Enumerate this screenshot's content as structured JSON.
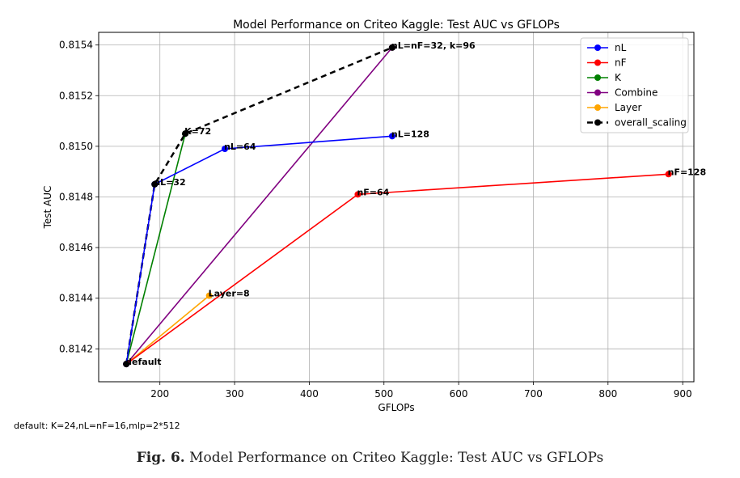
{
  "chart_data": {
    "type": "line",
    "title": "Model Performance on Criteo Kaggle: Test AUC vs GFLOPs",
    "xlabel": "GFLOPs",
    "ylabel": "Test AUC",
    "xlim": [
      118,
      915
    ],
    "ylim": [
      0.81407,
      0.81545
    ],
    "xticks": [
      200,
      300,
      400,
      500,
      600,
      700,
      800,
      900
    ],
    "yticks": [
      0.8142,
      0.8144,
      0.8146,
      0.8148,
      0.815,
      0.8152,
      0.8154
    ],
    "grid": true,
    "legend_position": "top-right",
    "series": [
      {
        "name": "nL",
        "color": "#0000ff",
        "dashed": false,
        "points": [
          [
            155,
            0.81414
          ],
          [
            193,
            0.81485
          ],
          [
            287,
            0.81499
          ],
          [
            511,
            0.81504
          ]
        ]
      },
      {
        "name": "nF",
        "color": "#ff0000",
        "dashed": false,
        "points": [
          [
            155,
            0.81414
          ],
          [
            465,
            0.81481
          ],
          [
            881,
            0.81489
          ]
        ]
      },
      {
        "name": "K",
        "color": "#008000",
        "dashed": false,
        "points": [
          [
            155,
            0.81414
          ],
          [
            234,
            0.81505
          ]
        ]
      },
      {
        "name": "Combine",
        "color": "#800080",
        "dashed": false,
        "points": [
          [
            155,
            0.81414
          ],
          [
            511,
            0.81539
          ]
        ]
      },
      {
        "name": "Layer",
        "color": "#ffa500",
        "dashed": false,
        "points": [
          [
            155,
            0.81414
          ],
          [
            266,
            0.81441
          ]
        ]
      },
      {
        "name": "overall_scaling",
        "color": "#000000",
        "dashed": true,
        "points": [
          [
            155,
            0.81414
          ],
          [
            193,
            0.81485
          ],
          [
            234,
            0.81505
          ],
          [
            511,
            0.81539
          ]
        ]
      }
    ],
    "annotations": [
      {
        "text": "default",
        "x": 155,
        "y": 0.81414
      },
      {
        "text": "nL=32",
        "x": 193,
        "y": 0.81485
      },
      {
        "text": "K=72",
        "x": 234,
        "y": 0.81505
      },
      {
        "text": "nL=64",
        "x": 287,
        "y": 0.81499
      },
      {
        "text": "nL=128",
        "x": 511,
        "y": 0.81504
      },
      {
        "text": "nL=nF=32, k=96",
        "x": 511,
        "y": 0.81539
      },
      {
        "text": "nF=64",
        "x": 465,
        "y": 0.81481
      },
      {
        "text": "nF=128",
        "x": 881,
        "y": 0.81489
      },
      {
        "text": "Layer=8",
        "x": 266,
        "y": 0.81441
      }
    ]
  },
  "footnote": "default: K=24,nL=nF=16,mlp=2*512",
  "caption": {
    "label": "Fig. 6.",
    "text": "Model Performance on Criteo Kaggle: Test AUC vs GFLOPs"
  }
}
